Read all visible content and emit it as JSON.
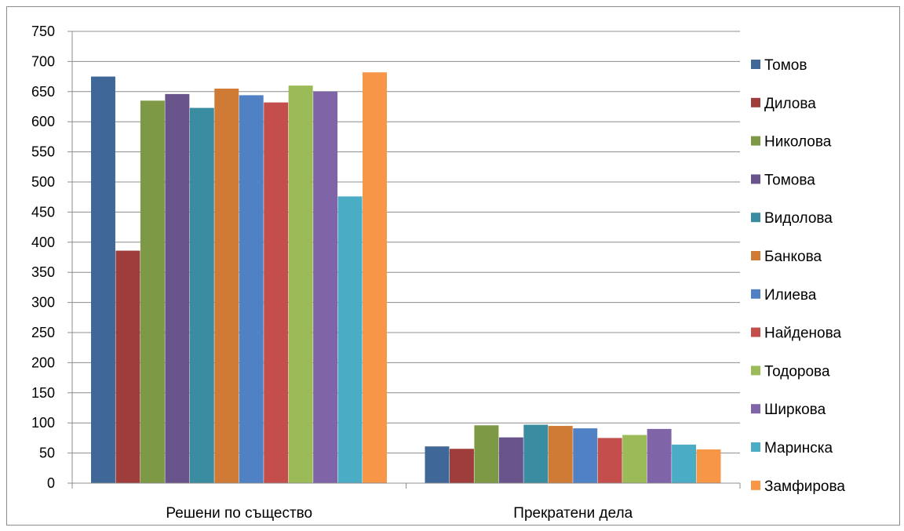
{
  "chart_data": {
    "type": "bar",
    "categories": [
      "Решени по същество",
      "Прекратени дела"
    ],
    "series": [
      {
        "name": "Томов",
        "color": "#3F6898",
        "values": [
          675,
          61
        ]
      },
      {
        "name": "Дилова",
        "color": "#9E3D3B",
        "values": [
          386,
          57
        ]
      },
      {
        "name": "Николова",
        "color": "#7E9945",
        "values": [
          635,
          96
        ]
      },
      {
        "name": "Томова",
        "color": "#68538A",
        "values": [
          646,
          76
        ]
      },
      {
        "name": "Видолова",
        "color": "#3A8DA1",
        "values": [
          623,
          97
        ]
      },
      {
        "name": "Банкова",
        "color": "#D07B35",
        "values": [
          655,
          95
        ]
      },
      {
        "name": "Илиева",
        "color": "#4F81C4",
        "values": [
          644,
          91
        ]
      },
      {
        "name": "Найденова",
        "color": "#C34E4C",
        "values": [
          632,
          75
        ]
      },
      {
        "name": "Тодорова",
        "color": "#9BBB59",
        "values": [
          660,
          80
        ]
      },
      {
        "name": "Ширкова",
        "color": "#8064A8",
        "values": [
          650,
          90
        ]
      },
      {
        "name": "Маринска",
        "color": "#4BACC6",
        "values": [
          476,
          64
        ]
      },
      {
        "name": "Замфирова",
        "color": "#F79646",
        "values": [
          682,
          56
        ]
      }
    ],
    "ylim": [
      0,
      750
    ],
    "yticks": [
      0,
      50,
      100,
      150,
      200,
      250,
      300,
      350,
      400,
      450,
      500,
      550,
      600,
      650,
      700,
      750
    ],
    "grid": true,
    "legend": "right"
  }
}
